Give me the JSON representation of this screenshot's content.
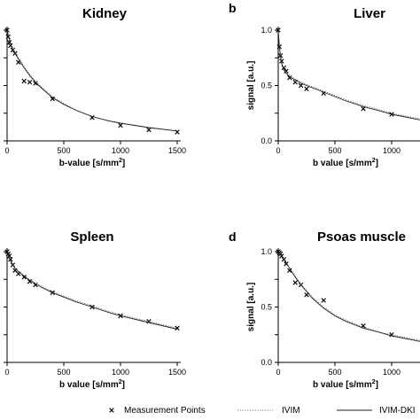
{
  "chart_data": [
    {
      "type": "line",
      "panel_label": "",
      "title": "Kidney",
      "xlabel": "b-value [s/mm",
      "xlabel_sup": "2",
      "xlabel_end": "]",
      "ylabel": "",
      "xlim": [
        0,
        1500
      ],
      "ylim": [
        0,
        1.0
      ],
      "xticks": [
        "0",
        "500",
        "1000",
        "1500"
      ],
      "yticks": [],
      "series": [
        {
          "marker": "x",
          "x": [
            0,
            10,
            20,
            30,
            50,
            70,
            100,
            150,
            200,
            250,
            400,
            750,
            1000,
            1250,
            1500
          ],
          "y": [
            1.0,
            0.94,
            0.89,
            0.86,
            0.82,
            0.79,
            0.71,
            0.54,
            0.53,
            0.52,
            0.38,
            0.21,
            0.14,
            0.1,
            0.08
          ]
        },
        {
          "style": "dotted",
          "x": [
            0,
            10,
            20,
            30,
            50,
            70,
            100,
            150,
            200,
            250,
            300,
            400,
            500,
            600,
            750,
            900,
            1000,
            1250,
            1500
          ],
          "y": [
            1.0,
            0.96,
            0.92,
            0.89,
            0.84,
            0.8,
            0.75,
            0.67,
            0.6,
            0.54,
            0.49,
            0.4,
            0.34,
            0.28,
            0.22,
            0.18,
            0.16,
            0.12,
            0.09
          ]
        },
        {
          "style": "solid",
          "x": [
            0,
            10,
            20,
            30,
            50,
            70,
            100,
            150,
            200,
            250,
            300,
            400,
            500,
            600,
            750,
            900,
            1000,
            1250,
            1500
          ],
          "y": [
            1.0,
            0.95,
            0.91,
            0.88,
            0.83,
            0.79,
            0.74,
            0.66,
            0.59,
            0.53,
            0.48,
            0.39,
            0.33,
            0.28,
            0.22,
            0.18,
            0.16,
            0.12,
            0.09
          ]
        }
      ]
    },
    {
      "type": "line",
      "panel_label": "b",
      "title": "Liver",
      "xlabel": "b value [s/mm",
      "xlabel_sup": "2",
      "xlabel_end": "]",
      "ylabel": "signal [a.u.]",
      "xlim": [
        0,
        1250
      ],
      "ylim": [
        0,
        1.0
      ],
      "xticks": [
        "0",
        "500",
        "1000"
      ],
      "yticks": [
        "0.0",
        "0.5",
        "1.0"
      ],
      "series": [
        {
          "marker": "x",
          "x": [
            0,
            10,
            20,
            30,
            50,
            70,
            100,
            150,
            200,
            250,
            400,
            750,
            1000,
            1250
          ],
          "y": [
            1.0,
            0.85,
            0.77,
            0.72,
            0.66,
            0.63,
            0.57,
            0.53,
            0.5,
            0.47,
            0.43,
            0.29,
            0.24,
            0.21
          ]
        },
        {
          "style": "dotted",
          "x": [
            0,
            10,
            20,
            30,
            50,
            70,
            100,
            150,
            200,
            250,
            300,
            400,
            500,
            600,
            750,
            900,
            1000,
            1100,
            1250
          ],
          "y": [
            1.0,
            0.86,
            0.77,
            0.71,
            0.65,
            0.62,
            0.59,
            0.56,
            0.53,
            0.51,
            0.49,
            0.45,
            0.41,
            0.37,
            0.32,
            0.28,
            0.25,
            0.23,
            0.2
          ]
        },
        {
          "style": "solid",
          "x": [
            0,
            10,
            20,
            30,
            50,
            70,
            100,
            150,
            200,
            250,
            300,
            400,
            500,
            600,
            750,
            900,
            1000,
            1100,
            1250
          ],
          "y": [
            1.0,
            0.85,
            0.76,
            0.7,
            0.64,
            0.61,
            0.58,
            0.55,
            0.52,
            0.5,
            0.48,
            0.44,
            0.4,
            0.36,
            0.31,
            0.27,
            0.24,
            0.22,
            0.19
          ]
        }
      ]
    },
    {
      "type": "line",
      "panel_label": "",
      "title": "Spleen",
      "xlabel": "b value [s/mm",
      "xlabel_sup": "2",
      "xlabel_end": "]",
      "ylabel": "",
      "xlim": [
        0,
        1500
      ],
      "ylim": [
        0,
        1.0
      ],
      "xticks": [
        "0",
        "500",
        "1000",
        "1500"
      ],
      "yticks": [],
      "series": [
        {
          "marker": "x",
          "x": [
            0,
            10,
            20,
            30,
            50,
            70,
            100,
            150,
            200,
            250,
            400,
            750,
            1000,
            1250,
            1500
          ],
          "y": [
            1.0,
            0.98,
            0.96,
            0.93,
            0.88,
            0.83,
            0.8,
            0.77,
            0.73,
            0.7,
            0.63,
            0.5,
            0.42,
            0.37,
            0.31
          ]
        },
        {
          "style": "dotted",
          "x": [
            0,
            10,
            20,
            30,
            50,
            70,
            100,
            150,
            200,
            250,
            300,
            400,
            500,
            600,
            750,
            900,
            1000,
            1250,
            1500
          ],
          "y": [
            1.0,
            0.97,
            0.94,
            0.92,
            0.88,
            0.85,
            0.82,
            0.78,
            0.75,
            0.72,
            0.69,
            0.64,
            0.6,
            0.56,
            0.51,
            0.46,
            0.43,
            0.37,
            0.31
          ]
        },
        {
          "style": "solid",
          "x": [
            0,
            10,
            20,
            30,
            50,
            70,
            100,
            150,
            200,
            250,
            300,
            400,
            500,
            600,
            750,
            900,
            1000,
            1250,
            1500
          ],
          "y": [
            1.0,
            0.97,
            0.94,
            0.92,
            0.88,
            0.85,
            0.82,
            0.78,
            0.74,
            0.71,
            0.68,
            0.63,
            0.59,
            0.55,
            0.5,
            0.45,
            0.42,
            0.36,
            0.3
          ]
        }
      ]
    },
    {
      "type": "line",
      "panel_label": "d",
      "title": "Psoas muscle",
      "xlabel": "b value [s/mm",
      "xlabel_sup": "2",
      "xlabel_end": "]",
      "ylabel": "signal [a.u.]",
      "xlim": [
        0,
        1250
      ],
      "ylim": [
        0,
        1.0
      ],
      "xticks": [
        "0",
        "500",
        "1000"
      ],
      "yticks": [
        "0.0",
        "0.5",
        "1.0"
      ],
      "series": [
        {
          "marker": "x",
          "x": [
            0,
            10,
            20,
            30,
            50,
            70,
            100,
            150,
            200,
            250,
            400,
            750,
            1000,
            1250
          ],
          "y": [
            1.0,
            0.99,
            0.98,
            0.96,
            0.93,
            0.89,
            0.83,
            0.72,
            0.7,
            0.61,
            0.56,
            0.33,
            0.25,
            0.22
          ]
        },
        {
          "style": "dotted",
          "x": [
            0,
            10,
            20,
            30,
            50,
            70,
            100,
            150,
            200,
            250,
            300,
            400,
            500,
            600,
            750,
            900,
            1000,
            1100,
            1250
          ],
          "y": [
            1.0,
            0.99,
            0.98,
            0.96,
            0.93,
            0.9,
            0.85,
            0.78,
            0.71,
            0.65,
            0.59,
            0.5,
            0.43,
            0.38,
            0.32,
            0.27,
            0.25,
            0.23,
            0.2
          ]
        },
        {
          "style": "solid",
          "x": [
            0,
            10,
            20,
            30,
            50,
            70,
            100,
            150,
            200,
            250,
            300,
            400,
            500,
            600,
            750,
            900,
            1000,
            1100,
            1250
          ],
          "y": [
            1.0,
            0.99,
            0.98,
            0.96,
            0.93,
            0.9,
            0.85,
            0.77,
            0.7,
            0.64,
            0.58,
            0.49,
            0.42,
            0.37,
            0.31,
            0.27,
            0.24,
            0.22,
            0.19
          ]
        }
      ]
    }
  ],
  "legend": {
    "items": [
      {
        "label": "Measurement Points",
        "kind": "marker"
      },
      {
        "label": "IVIM",
        "kind": "dotted"
      },
      {
        "label": "IVIM-DKI",
        "kind": "solid"
      }
    ]
  }
}
